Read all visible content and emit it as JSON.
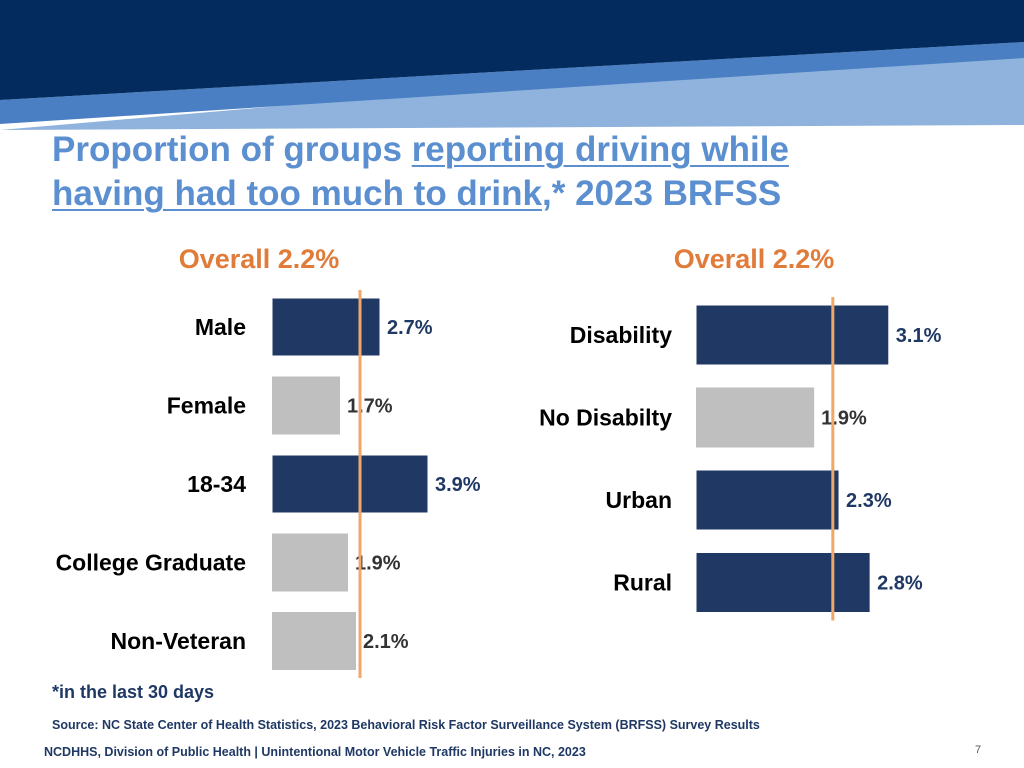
{
  "title": {
    "prefix": "Proportion of groups ",
    "link_line1": "reporting driving while",
    "link_line2": "having had too much to drink",
    "suffix": ",* 2023 BRFSS"
  },
  "colors": {
    "banner_dark": "#032b5e",
    "banner_mid": "#4a7fc4",
    "banner_light": "#8fb3dc",
    "highlight_bar": "#1f3864",
    "other_bar": "#bfbfbf",
    "reference_line": "#f0a868",
    "overall_text": "#e07b39"
  },
  "chart_data": [
    {
      "type": "bar",
      "orientation": "horizontal",
      "title": "Overall 2.2%",
      "overall": 2.2,
      "categories": [
        "Male",
        "Female",
        "18-34",
        "College Graduate",
        "Non-Veteran"
      ],
      "values": [
        2.7,
        1.7,
        3.9,
        1.9,
        2.1
      ],
      "labels": [
        "2.7%",
        "1.7%",
        "3.9%",
        "1.9%",
        "2.1%"
      ],
      "highlight": [
        true,
        false,
        true,
        false,
        false
      ],
      "xlim": [
        0,
        4
      ]
    },
    {
      "type": "bar",
      "orientation": "horizontal",
      "title": "Overall 2.2%",
      "overall": 2.2,
      "categories": [
        "Disability",
        "No Disabilty",
        "Urban",
        "Rural"
      ],
      "values": [
        3.1,
        1.9,
        2.3,
        2.8
      ],
      "labels": [
        "3.1%",
        "1.9%",
        "2.3%",
        "2.8%"
      ],
      "highlight": [
        true,
        false,
        true,
        true
      ],
      "xlim": [
        0,
        3.2
      ]
    }
  ],
  "footnote": "*in the last 30 days",
  "source": "Source: NC State Center of Health Statistics, 2023 Behavioral Risk Factor Surveillance System (BRFSS) Survey Results",
  "footer": "NCDHHS, Division of Public Health | Unintentional Motor Vehicle Traffic Injuries in NC, 2023",
  "page_number": "7"
}
